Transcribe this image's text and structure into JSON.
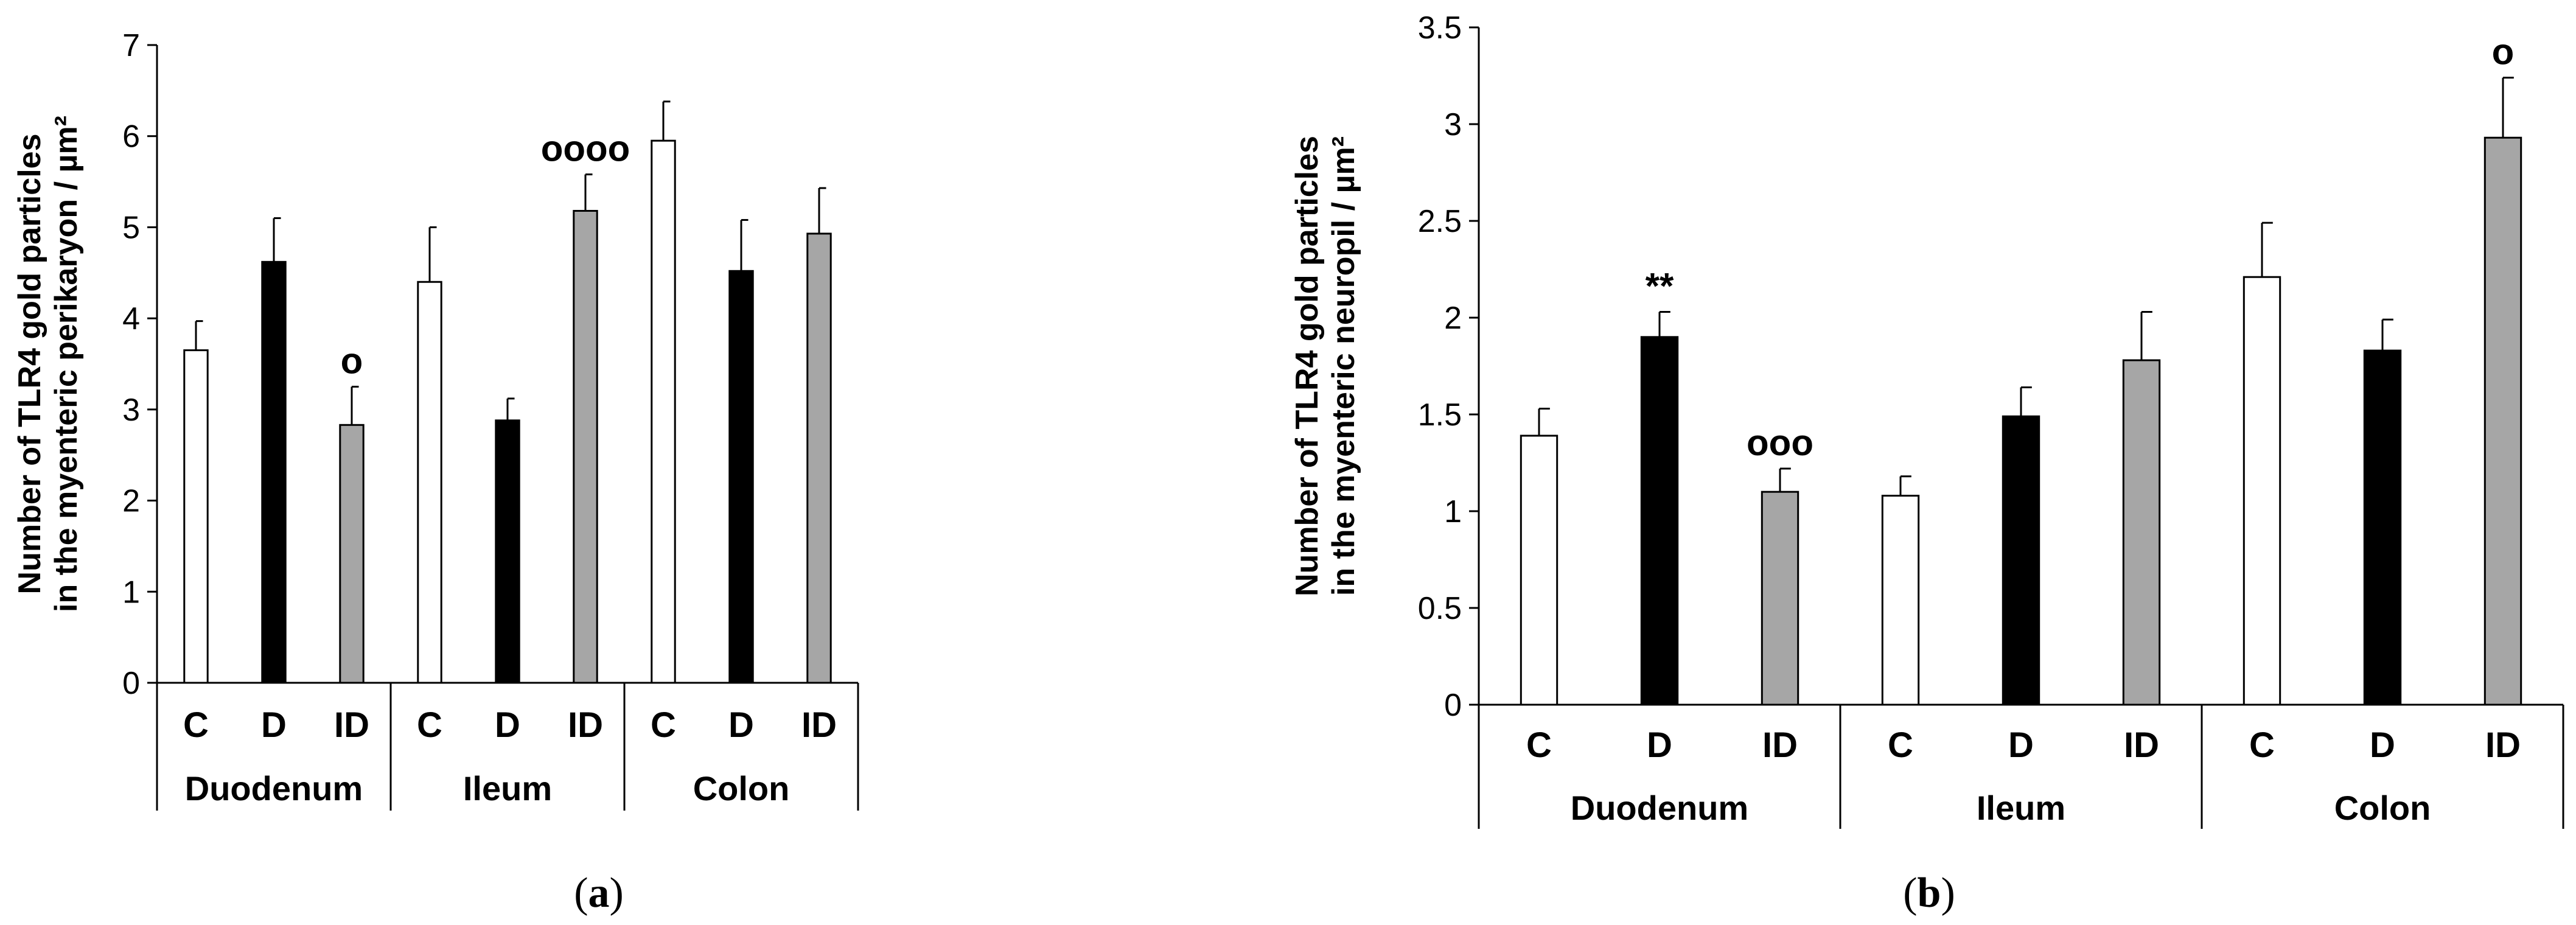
{
  "chart_data": [
    {
      "id": "a",
      "type": "bar",
      "caption": {
        "open": "(",
        "letter": "a",
        "close": ")"
      },
      "ylabel_lines": [
        "Number of TLR4 gold particles",
        "in the myenteric perikaryon / µm²"
      ],
      "ylim": [
        0,
        7
      ],
      "yticks": [
        "0",
        "1",
        "2",
        "3",
        "4",
        "5",
        "6",
        "7"
      ],
      "groups": [
        "Duodenum",
        "Ileum",
        "Colon"
      ],
      "categories": [
        "C",
        "D",
        "ID"
      ],
      "colors": {
        "C": "#ffffff",
        "D": "#000000",
        "ID": "#a6a6a6"
      },
      "series": [
        {
          "name": "C",
          "values": [
            3.65,
            4.4,
            5.95
          ],
          "errors": [
            0.32,
            0.6,
            0.43
          ],
          "annotations": [
            "",
            "",
            ""
          ]
        },
        {
          "name": "D",
          "values": [
            4.62,
            2.88,
            4.52
          ],
          "errors": [
            0.48,
            0.24,
            0.56
          ],
          "annotations": [
            "",
            "",
            ""
          ]
        },
        {
          "name": "ID",
          "values": [
            2.83,
            5.18,
            4.93
          ],
          "errors": [
            0.42,
            0.4,
            0.5
          ],
          "annotations": [
            "o",
            "oooo",
            ""
          ]
        }
      ]
    },
    {
      "id": "b",
      "type": "bar",
      "caption": {
        "open": "(",
        "letter": "b",
        "close": ")"
      },
      "ylabel_lines": [
        "Number of TLR4 gold particles",
        "in the myenteric neuropil / µm²"
      ],
      "ylim": [
        0,
        3.5
      ],
      "yticks": [
        "0",
        "0.5",
        "1",
        "1.5",
        "2",
        "2.5",
        "3",
        "3.5"
      ],
      "groups": [
        "Duodenum",
        "Ileum",
        "Colon"
      ],
      "categories": [
        "C",
        "D",
        "ID"
      ],
      "colors": {
        "C": "#ffffff",
        "D": "#000000",
        "ID": "#a6a6a6"
      },
      "series": [
        {
          "name": "C",
          "values": [
            1.39,
            1.08,
            2.21
          ],
          "errors": [
            0.14,
            0.1,
            0.28
          ],
          "annotations": [
            "",
            "",
            ""
          ]
        },
        {
          "name": "D",
          "values": [
            1.9,
            1.49,
            1.83
          ],
          "errors": [
            0.13,
            0.15,
            0.16
          ],
          "annotations": [
            "**",
            "",
            ""
          ]
        },
        {
          "name": "ID",
          "values": [
            1.1,
            1.78,
            2.93
          ],
          "errors": [
            0.12,
            0.25,
            0.31
          ],
          "annotations": [
            "ooo",
            "",
            "o"
          ]
        }
      ]
    }
  ]
}
